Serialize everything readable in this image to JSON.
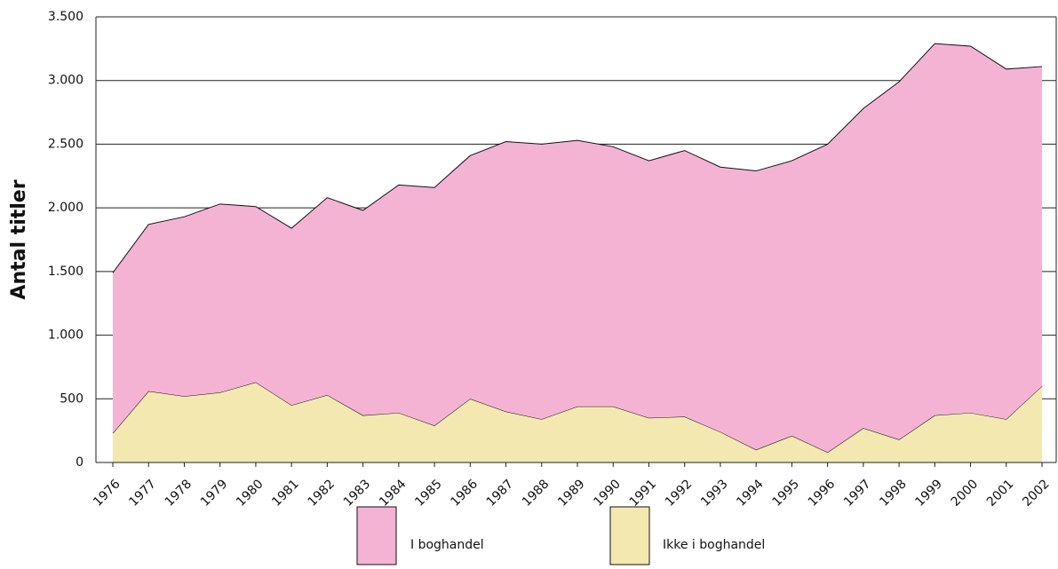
{
  "chart_data": {
    "type": "stacked_area",
    "y_label": "Antal titler",
    "categories": [
      "1976",
      "1977",
      "1978",
      "1979",
      "1980",
      "1981",
      "1982",
      "1983",
      "1984",
      "1985",
      "1986",
      "1987",
      "1988",
      "1989",
      "1990",
      "1991",
      "1992",
      "1993",
      "1994",
      "1995",
      "1996",
      "1997",
      "1998",
      "1999",
      "2000",
      "2001",
      "2002"
    ],
    "series": [
      {
        "name": "I boghandel",
        "color": "#f5b3d4",
        "values": [
          1260,
          1310,
          1410,
          1480,
          1380,
          1390,
          1550,
          1610,
          1790,
          1870,
          1910,
          2120,
          2160,
          2090,
          2040,
          2020,
          2090,
          2080,
          2190,
          2160,
          2420,
          2510,
          2810,
          2920,
          2880,
          2750,
          2510
        ]
      },
      {
        "name": "Ikke i boghandel",
        "color": "#f3e9b0",
        "values": [
          230,
          560,
          520,
          550,
          630,
          450,
          530,
          370,
          390,
          290,
          500,
          400,
          340,
          440,
          440,
          350,
          360,
          240,
          100,
          210,
          80,
          270,
          180,
          370,
          390,
          340,
          600
        ]
      }
    ],
    "ylim": [
      0,
      3500
    ],
    "yticks": [
      0,
      500,
      {
        "value": 1000,
        "label": "1.000"
      },
      {
        "value": 1500,
        "label": "1.500"
      },
      {
        "value": 2000,
        "label": "2.000"
      },
      {
        "value": 2500,
        "label": "2.500"
      },
      {
        "value": 3000,
        "label": "3.000"
      },
      {
        "value": 3500,
        "label": "3.500"
      }
    ],
    "grid": true
  }
}
